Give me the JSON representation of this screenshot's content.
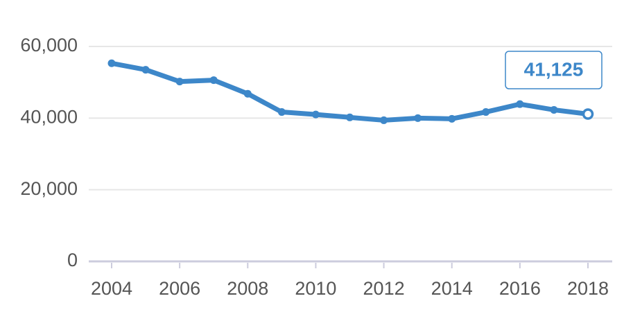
{
  "chart_data": {
    "type": "line",
    "x": [
      2004,
      2005,
      2006,
      2007,
      2008,
      2009,
      2010,
      2011,
      2012,
      2013,
      2014,
      2015,
      2016,
      2017,
      2018
    ],
    "series": [
      {
        "color": "#3d87c9",
        "values": [
          55300,
          53500,
          50200,
          50600,
          46800,
          41700,
          41000,
          40200,
          39400,
          40000,
          39800,
          41700,
          43900,
          42300,
          41125
        ],
        "value_labels": [
          null,
          null,
          null,
          null,
          null,
          null,
          null,
          null,
          null,
          null,
          null,
          null,
          null,
          null,
          "41,125"
        ]
      }
    ],
    "xlim": [
      2004,
      2018
    ],
    "xticks": [
      2004,
      2006,
      2008,
      2010,
      2012,
      2014,
      2016,
      2018
    ],
    "ylim": [
      0,
      60000
    ],
    "yticks": [
      0,
      {
        "value": 20000,
        "label": "20,000"
      },
      {
        "value": 40000,
        "label": "40,000"
      },
      {
        "value": 60000,
        "label": "60,000"
      }
    ],
    "grid": true
  }
}
